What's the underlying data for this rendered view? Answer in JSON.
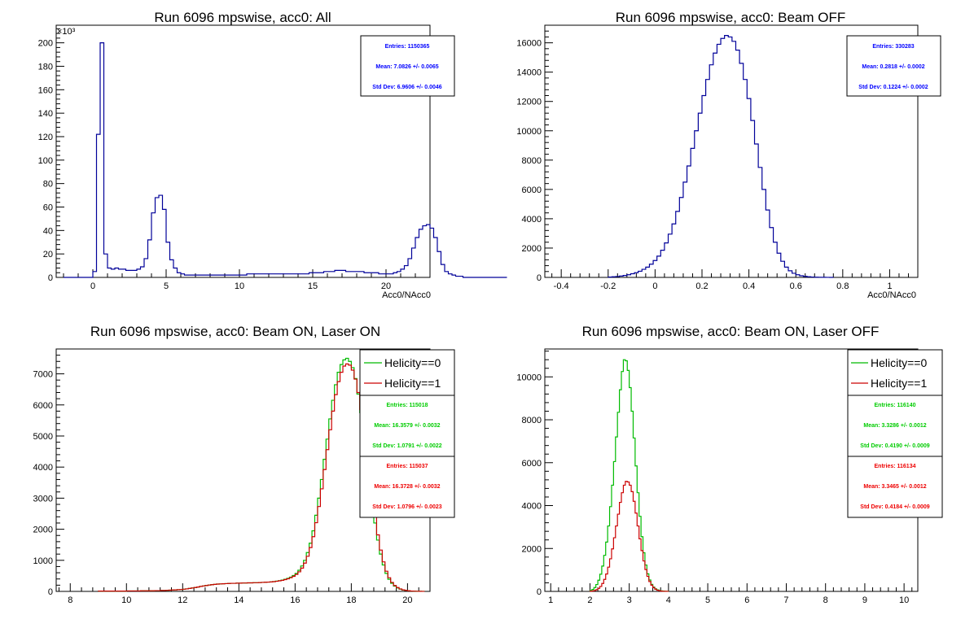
{
  "canvas": {
    "background": "#ffffff"
  },
  "colors": {
    "blue": "#000099",
    "statblue": "#0000ff",
    "green": "#00bb00",
    "statgreen": "#00cc00",
    "red": "#cc0000",
    "statred": "#ee0000"
  },
  "chart_data": [
    {
      "type": "histogram",
      "title": "Run 6096 mpswise, acc0: All",
      "xlabel": "Acc0/NAcc0",
      "exponent_label": "×10³",
      "xlim": [
        -2.5,
        23.0
      ],
      "ylim": [
        0,
        215
      ],
      "xticks": [
        0,
        5,
        10,
        15,
        20
      ],
      "xtick_labels": [
        "0",
        "5",
        "10",
        "15",
        "20"
      ],
      "yticks": [
        0,
        20,
        40,
        60,
        80,
        100,
        120,
        140,
        160,
        180,
        200
      ],
      "ytick_labels": [
        "0",
        "20",
        "40",
        "60",
        "80",
        "100",
        "120",
        "140",
        "160",
        "180",
        "200"
      ],
      "series": [
        {
          "color": "#000099",
          "bin_start": -2.0,
          "bin_width": 0.25,
          "values": [
            0,
            0,
            0,
            0,
            0,
            0,
            0,
            0,
            5,
            122,
            200,
            20,
            8,
            7,
            8,
            7,
            7,
            6,
            6,
            6,
            7,
            9,
            16,
            32,
            55,
            68,
            70,
            58,
            30,
            15,
            8,
            4,
            3,
            2,
            2,
            2,
            2,
            2,
            2,
            2,
            2,
            2,
            2,
            2,
            2,
            2,
            2,
            2,
            2,
            2,
            3,
            3,
            3,
            3,
            3,
            3,
            3,
            3,
            3,
            3,
            3,
            3,
            3,
            3,
            3,
            3,
            3,
            4,
            4,
            4,
            4,
            5,
            5,
            5,
            6,
            6,
            6,
            5,
            5,
            5,
            5,
            5,
            4,
            4,
            4,
            4,
            3,
            3,
            3,
            3,
            4,
            5,
            7,
            10,
            16,
            25,
            34,
            41,
            44,
            45,
            42,
            34,
            22,
            11,
            5,
            3,
            2,
            1,
            1,
            0,
            0,
            0,
            0,
            0,
            0,
            0,
            0,
            0,
            0,
            0,
            0
          ]
        }
      ],
      "stats": [
        {
          "color": "#0000ff",
          "entries": "Entries: 1150365",
          "mean": "Mean: 7.0826 +/- 0.0065",
          "std": "Std Dev: 6.9606 +/- 0.0046"
        }
      ]
    },
    {
      "type": "histogram",
      "title": "Run 6096 mpswise, acc0: Beam OFF",
      "xlabel": "Acc0/NAcc0",
      "xlim": [
        -0.47,
        1.12
      ],
      "ylim": [
        0,
        17200
      ],
      "xticks": [
        -0.4,
        -0.2,
        0,
        0.2,
        0.4,
        0.6,
        0.8,
        1.0
      ],
      "xtick_labels": [
        "-0.4",
        "-0.2",
        "0",
        "0.2",
        "0.4",
        "0.6",
        "0.8",
        "1"
      ],
      "yticks": [
        0,
        2000,
        4000,
        6000,
        8000,
        10000,
        12000,
        14000,
        16000
      ],
      "ytick_labels": [
        "0",
        "2000",
        "4000",
        "6000",
        "8000",
        "10000",
        "12000",
        "14000",
        "16000"
      ],
      "series": [
        {
          "color": "#000099",
          "bin_start": -0.2,
          "bin_width": 0.016,
          "values": [
            20,
            40,
            60,
            90,
            130,
            180,
            250,
            320,
            420,
            550,
            700,
            900,
            1150,
            1450,
            1850,
            2350,
            2950,
            3650,
            4500,
            5450,
            6500,
            7600,
            8800,
            10000,
            11200,
            12400,
            13500,
            14500,
            15300,
            15900,
            16300,
            16500,
            16400,
            16100,
            15500,
            14600,
            13500,
            12200,
            10700,
            9100,
            7500,
            6000,
            4600,
            3400,
            2400,
            1650,
            1100,
            700,
            450,
            280,
            180,
            110,
            70,
            40,
            25,
            15,
            10,
            5,
            3,
            2
          ]
        }
      ],
      "stats": [
        {
          "color": "#0000ff",
          "entries": "Entries: 330283",
          "mean": "Mean: 0.2818 +/- 0.0002",
          "std": "Std Dev: 0.1224 +/- 0.0002"
        }
      ]
    },
    {
      "type": "histogram",
      "title": "Run 6096 mpswise, acc0: Beam ON, Laser ON",
      "xlabel": "",
      "xlim": [
        7.5,
        20.8
      ],
      "ylim": [
        0,
        7800
      ],
      "xticks": [
        8,
        10,
        12,
        14,
        16,
        18,
        20
      ],
      "xtick_labels": [
        "8",
        "10",
        "12",
        "14",
        "16",
        "18",
        "20"
      ],
      "yticks": [
        0,
        1000,
        2000,
        3000,
        4000,
        5000,
        6000,
        7000
      ],
      "ytick_labels": [
        "0",
        "1000",
        "2000",
        "3000",
        "4000",
        "5000",
        "6000",
        "7000"
      ],
      "series": [
        {
          "name": "Helicity==0",
          "color": "#00bb00",
          "bin_start": 9.0,
          "bin_width": 0.1,
          "values": [
            10,
            10,
            10,
            10,
            10,
            10,
            10,
            10,
            10,
            10,
            15,
            15,
            15,
            15,
            15,
            20,
            20,
            20,
            20,
            20,
            25,
            25,
            30,
            30,
            35,
            40,
            45,
            50,
            55,
            60,
            70,
            80,
            95,
            110,
            125,
            140,
            160,
            175,
            190,
            205,
            215,
            225,
            235,
            240,
            245,
            250,
            255,
            260,
            260,
            265,
            265,
            270,
            270,
            275,
            275,
            280,
            280,
            285,
            290,
            295,
            300,
            305,
            315,
            330,
            345,
            365,
            390,
            420,
            460,
            510,
            580,
            680,
            820,
            1000,
            1250,
            1550,
            1950,
            2450,
            3000,
            3600,
            4250,
            4900,
            5550,
            6150,
            6650,
            7050,
            7300,
            7450,
            7500,
            7400,
            7200,
            6850,
            6350,
            5750,
            5050,
            4300,
            3550,
            2850,
            2200,
            1650,
            1200,
            850,
            580,
            390,
            260,
            170,
            110,
            70,
            45,
            30,
            20,
            12,
            8,
            5,
            3,
            2
          ]
        },
        {
          "name": "Helicity==1",
          "color": "#cc0000",
          "bin_start": 9.0,
          "bin_width": 0.1,
          "values": [
            10,
            10,
            10,
            10,
            10,
            10,
            10,
            10,
            10,
            10,
            15,
            15,
            15,
            15,
            15,
            20,
            20,
            20,
            20,
            20,
            25,
            25,
            30,
            30,
            35,
            40,
            45,
            50,
            55,
            60,
            70,
            80,
            95,
            110,
            125,
            140,
            160,
            175,
            190,
            205,
            215,
            225,
            235,
            240,
            245,
            250,
            255,
            260,
            260,
            265,
            265,
            270,
            270,
            275,
            275,
            280,
            280,
            285,
            290,
            295,
            300,
            305,
            315,
            325,
            340,
            355,
            380,
            405,
            440,
            485,
            545,
            630,
            750,
            910,
            1130,
            1410,
            1760,
            2210,
            2730,
            3300,
            3920,
            4560,
            5200,
            5800,
            6330,
            6750,
            7050,
            7250,
            7320,
            7280,
            7120,
            6830,
            6400,
            5850,
            5200,
            4480,
            3750,
            3050,
            2400,
            1820,
            1330,
            950,
            650,
            440,
            290,
            190,
            125,
            80,
            50,
            32,
            20,
            12,
            8,
            5,
            3,
            2
          ]
        }
      ],
      "legend": [
        {
          "label": "Helicity==0",
          "color": "#00bb00"
        },
        {
          "label": "Helicity==1",
          "color": "#cc0000"
        }
      ],
      "stats": [
        {
          "color": "#00cc00",
          "entries": "Entries: 115018",
          "mean": "Mean: 16.3579 +/- 0.0032",
          "std": "Std Dev: 1.0791 +/- 0.0022"
        },
        {
          "color": "#ee0000",
          "entries": "Entries: 115037",
          "mean": "Mean: 16.3728 +/- 0.0032",
          "std": "Std Dev: 1.0796 +/- 0.0023"
        }
      ]
    },
    {
      "type": "histogram",
      "title": "Run 6096 mpswise, acc0: Beam ON, Laser OFF",
      "xlabel": "",
      "xlim": [
        0.85,
        10.35
      ],
      "ylim": [
        0,
        11300
      ],
      "xticks": [
        1,
        2,
        3,
        4,
        5,
        6,
        7,
        8,
        9,
        10
      ],
      "xtick_labels": [
        "1",
        "2",
        "3",
        "4",
        "5",
        "6",
        "7",
        "8",
        "9",
        "10"
      ],
      "yticks": [
        0,
        2000,
        4000,
        6000,
        8000,
        10000
      ],
      "ytick_labels": [
        "0",
        "2000",
        "4000",
        "6000",
        "8000",
        "10000"
      ],
      "series": [
        {
          "name": "Helicity==0",
          "color": "#00bb00",
          "bin_start": 2.0,
          "bin_width": 0.05,
          "values": [
            40,
            90,
            180,
            320,
            520,
            800,
            1180,
            1680,
            2300,
            3050,
            3950,
            4950,
            6050,
            7200,
            8350,
            9400,
            10250,
            10800,
            10750,
            10300,
            9500,
            8400,
            7150,
            5850,
            4600,
            3500,
            2550,
            1800,
            1230,
            820,
            530,
            330,
            200,
            120,
            70,
            40,
            25,
            15,
            8,
            5
          ]
        },
        {
          "name": "Helicity==1",
          "color": "#cc0000",
          "bin_start": 2.0,
          "bin_width": 0.05,
          "values": [
            10,
            20,
            40,
            80,
            140,
            230,
            370,
            560,
            810,
            1130,
            1520,
            1980,
            2500,
            3050,
            3600,
            4150,
            4600,
            4950,
            5130,
            5100,
            4950,
            4650,
            4200,
            3650,
            3050,
            2450,
            1900,
            1420,
            1020,
            700,
            460,
            290,
            175,
            100,
            55,
            30,
            15,
            8,
            4,
            2
          ]
        }
      ],
      "legend": [
        {
          "label": "Helicity==0",
          "color": "#00bb00"
        },
        {
          "label": "Helicity==1",
          "color": "#cc0000"
        }
      ],
      "stats": [
        {
          "color": "#00cc00",
          "entries": "Entries: 116140",
          "mean": "Mean: 3.3286 +/- 0.0012",
          "std": "Std Dev: 0.4190 +/- 0.0009"
        },
        {
          "color": "#ee0000",
          "entries": "Entries: 116134",
          "mean": "Mean: 3.3465 +/- 0.0012",
          "std": "Std Dev: 0.4184 +/- 0.0009"
        }
      ]
    }
  ]
}
